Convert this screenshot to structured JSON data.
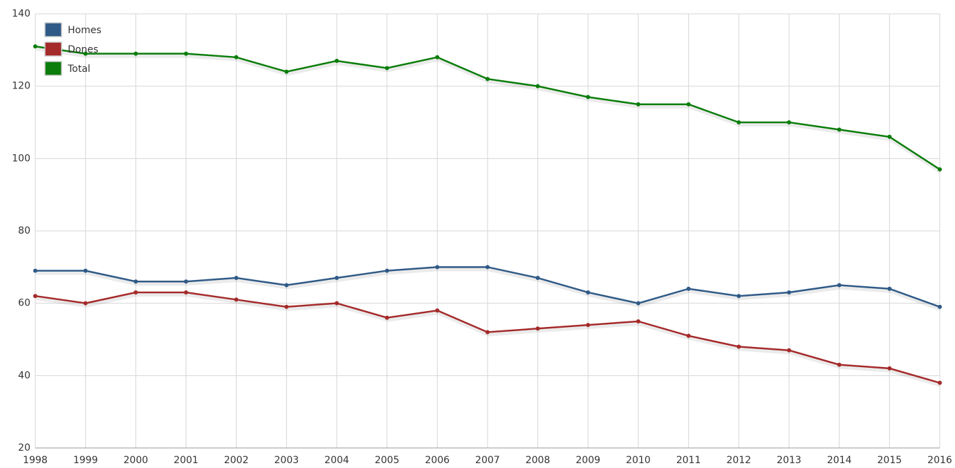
{
  "chart_data": {
    "type": "line",
    "x": [
      1998,
      1999,
      2000,
      2001,
      2002,
      2003,
      2004,
      2005,
      2006,
      2007,
      2008,
      2009,
      2010,
      2011,
      2012,
      2013,
      2014,
      2015,
      2016
    ],
    "xlim": [
      1998,
      2016
    ],
    "xticks": [
      1998,
      1999,
      2000,
      2001,
      2002,
      2003,
      2004,
      2005,
      2006,
      2007,
      2008,
      2009,
      2010,
      2011,
      2012,
      2013,
      2014,
      2015,
      2016
    ],
    "ylim": [
      20,
      140
    ],
    "yticks": [
      20,
      40,
      60,
      80,
      100,
      120,
      140
    ],
    "grid": true,
    "legend": "top-left",
    "series": [
      {
        "name": "Homes",
        "color": "#2f5a87",
        "values": [
          69,
          69,
          66,
          66,
          67,
          65,
          67,
          69,
          70,
          70,
          67,
          63,
          60,
          64,
          62,
          63,
          65,
          64,
          59
        ]
      },
      {
        "name": "Dones",
        "color": "#a52a2a",
        "values": [
          62,
          60,
          63,
          63,
          61,
          59,
          60,
          56,
          58,
          52,
          53,
          54,
          55,
          51,
          48,
          47,
          43,
          42,
          38
        ]
      },
      {
        "name": "Total",
        "color": "#0a7d0a",
        "values": [
          131,
          129,
          129,
          129,
          128,
          124,
          127,
          125,
          128,
          122,
          120,
          117,
          115,
          115,
          110,
          110,
          108,
          106,
          97
        ]
      }
    ]
  }
}
